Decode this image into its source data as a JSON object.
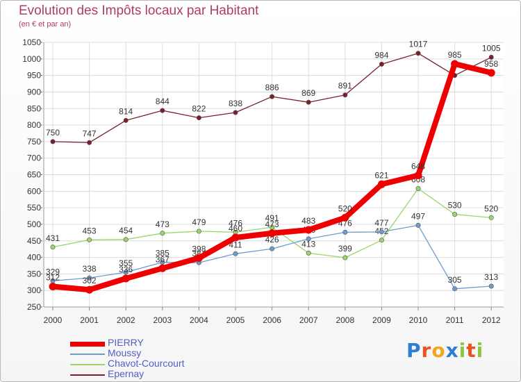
{
  "chart_data": {
    "type": "line",
    "title": "Evolution des Impôts locaux par Habitant",
    "subtitle": "(en € et par an)",
    "xlabel": "",
    "ylabel": "",
    "x": [
      "2000",
      "2001",
      "2002",
      "2003",
      "2004",
      "2005",
      "2006",
      "2007",
      "2008",
      "2009",
      "2010",
      "2011",
      "2012"
    ],
    "ylim": [
      250,
      1050
    ],
    "yticks": [
      250,
      300,
      350,
      400,
      450,
      500,
      550,
      600,
      650,
      700,
      750,
      800,
      850,
      900,
      950,
      1000,
      1050
    ],
    "grid": true,
    "legend_position": "bottom-left",
    "series": [
      {
        "name": "Epernay",
        "color": "#7a1f2b",
        "width": 1.3,
        "values": [
          750,
          747,
          814,
          844,
          822,
          838,
          886,
          869,
          891,
          984,
          1017,
          950,
          1005
        ],
        "labels": [
          "750",
          "747",
          "814",
          "844",
          "822",
          "838",
          "886",
          "869",
          "891",
          "984",
          "1017",
          "",
          "1005"
        ]
      },
      {
        "name": "Chavot-Courcourt",
        "color": "#9ad46a",
        "width": 1.3,
        "values": [
          431,
          453,
          454,
          473,
          479,
          476,
          491,
          413,
          399,
          452,
          608,
          530,
          520
        ],
        "labels": [
          "431",
          "453",
          "454",
          "473",
          "479",
          "476",
          "491",
          "413",
          "399",
          "452",
          "608",
          "530",
          "520"
        ]
      },
      {
        "name": "Moussy",
        "color": "#6d9ccc",
        "width": 1.3,
        "values": [
          329,
          338,
          355,
          385,
          384,
          411,
          426,
          456,
          476,
          477,
          497,
          305,
          313
        ],
        "labels": [
          "329",
          "338",
          "355",
          "385",
          "384",
          "411",
          "426",
          "456",
          "476",
          "477",
          "497",
          "305",
          "313"
        ]
      },
      {
        "name": "PIERRY",
        "color": "#ee0000",
        "width": 8,
        "values": [
          312,
          302,
          336,
          367,
          398,
          460,
          473,
          483,
          520,
          621,
          648,
          985,
          958
        ],
        "labels": [
          "312",
          "302",
          "336",
          "367",
          "398",
          "460",
          "473",
          "483",
          "520",
          "621",
          "648",
          "985",
          "958"
        ]
      }
    ],
    "legend_order": [
      "PIERRY",
      "Moussy",
      "Chavot-Courcourt",
      "Epernay"
    ]
  },
  "brand": {
    "text": "Proxiti",
    "letters": [
      {
        "ch": "P",
        "color": "#2d7fd1"
      },
      {
        "ch": "r",
        "color": "#e8531e"
      },
      {
        "ch": "o",
        "color": "#f2a81d"
      },
      {
        "ch": "x",
        "color": "#2d7fd1"
      },
      {
        "ch": "i",
        "color": "#8dc63f"
      },
      {
        "ch": "t",
        "color": "#e8531e"
      },
      {
        "ch": "i",
        "color": "#8dc63f"
      }
    ]
  }
}
